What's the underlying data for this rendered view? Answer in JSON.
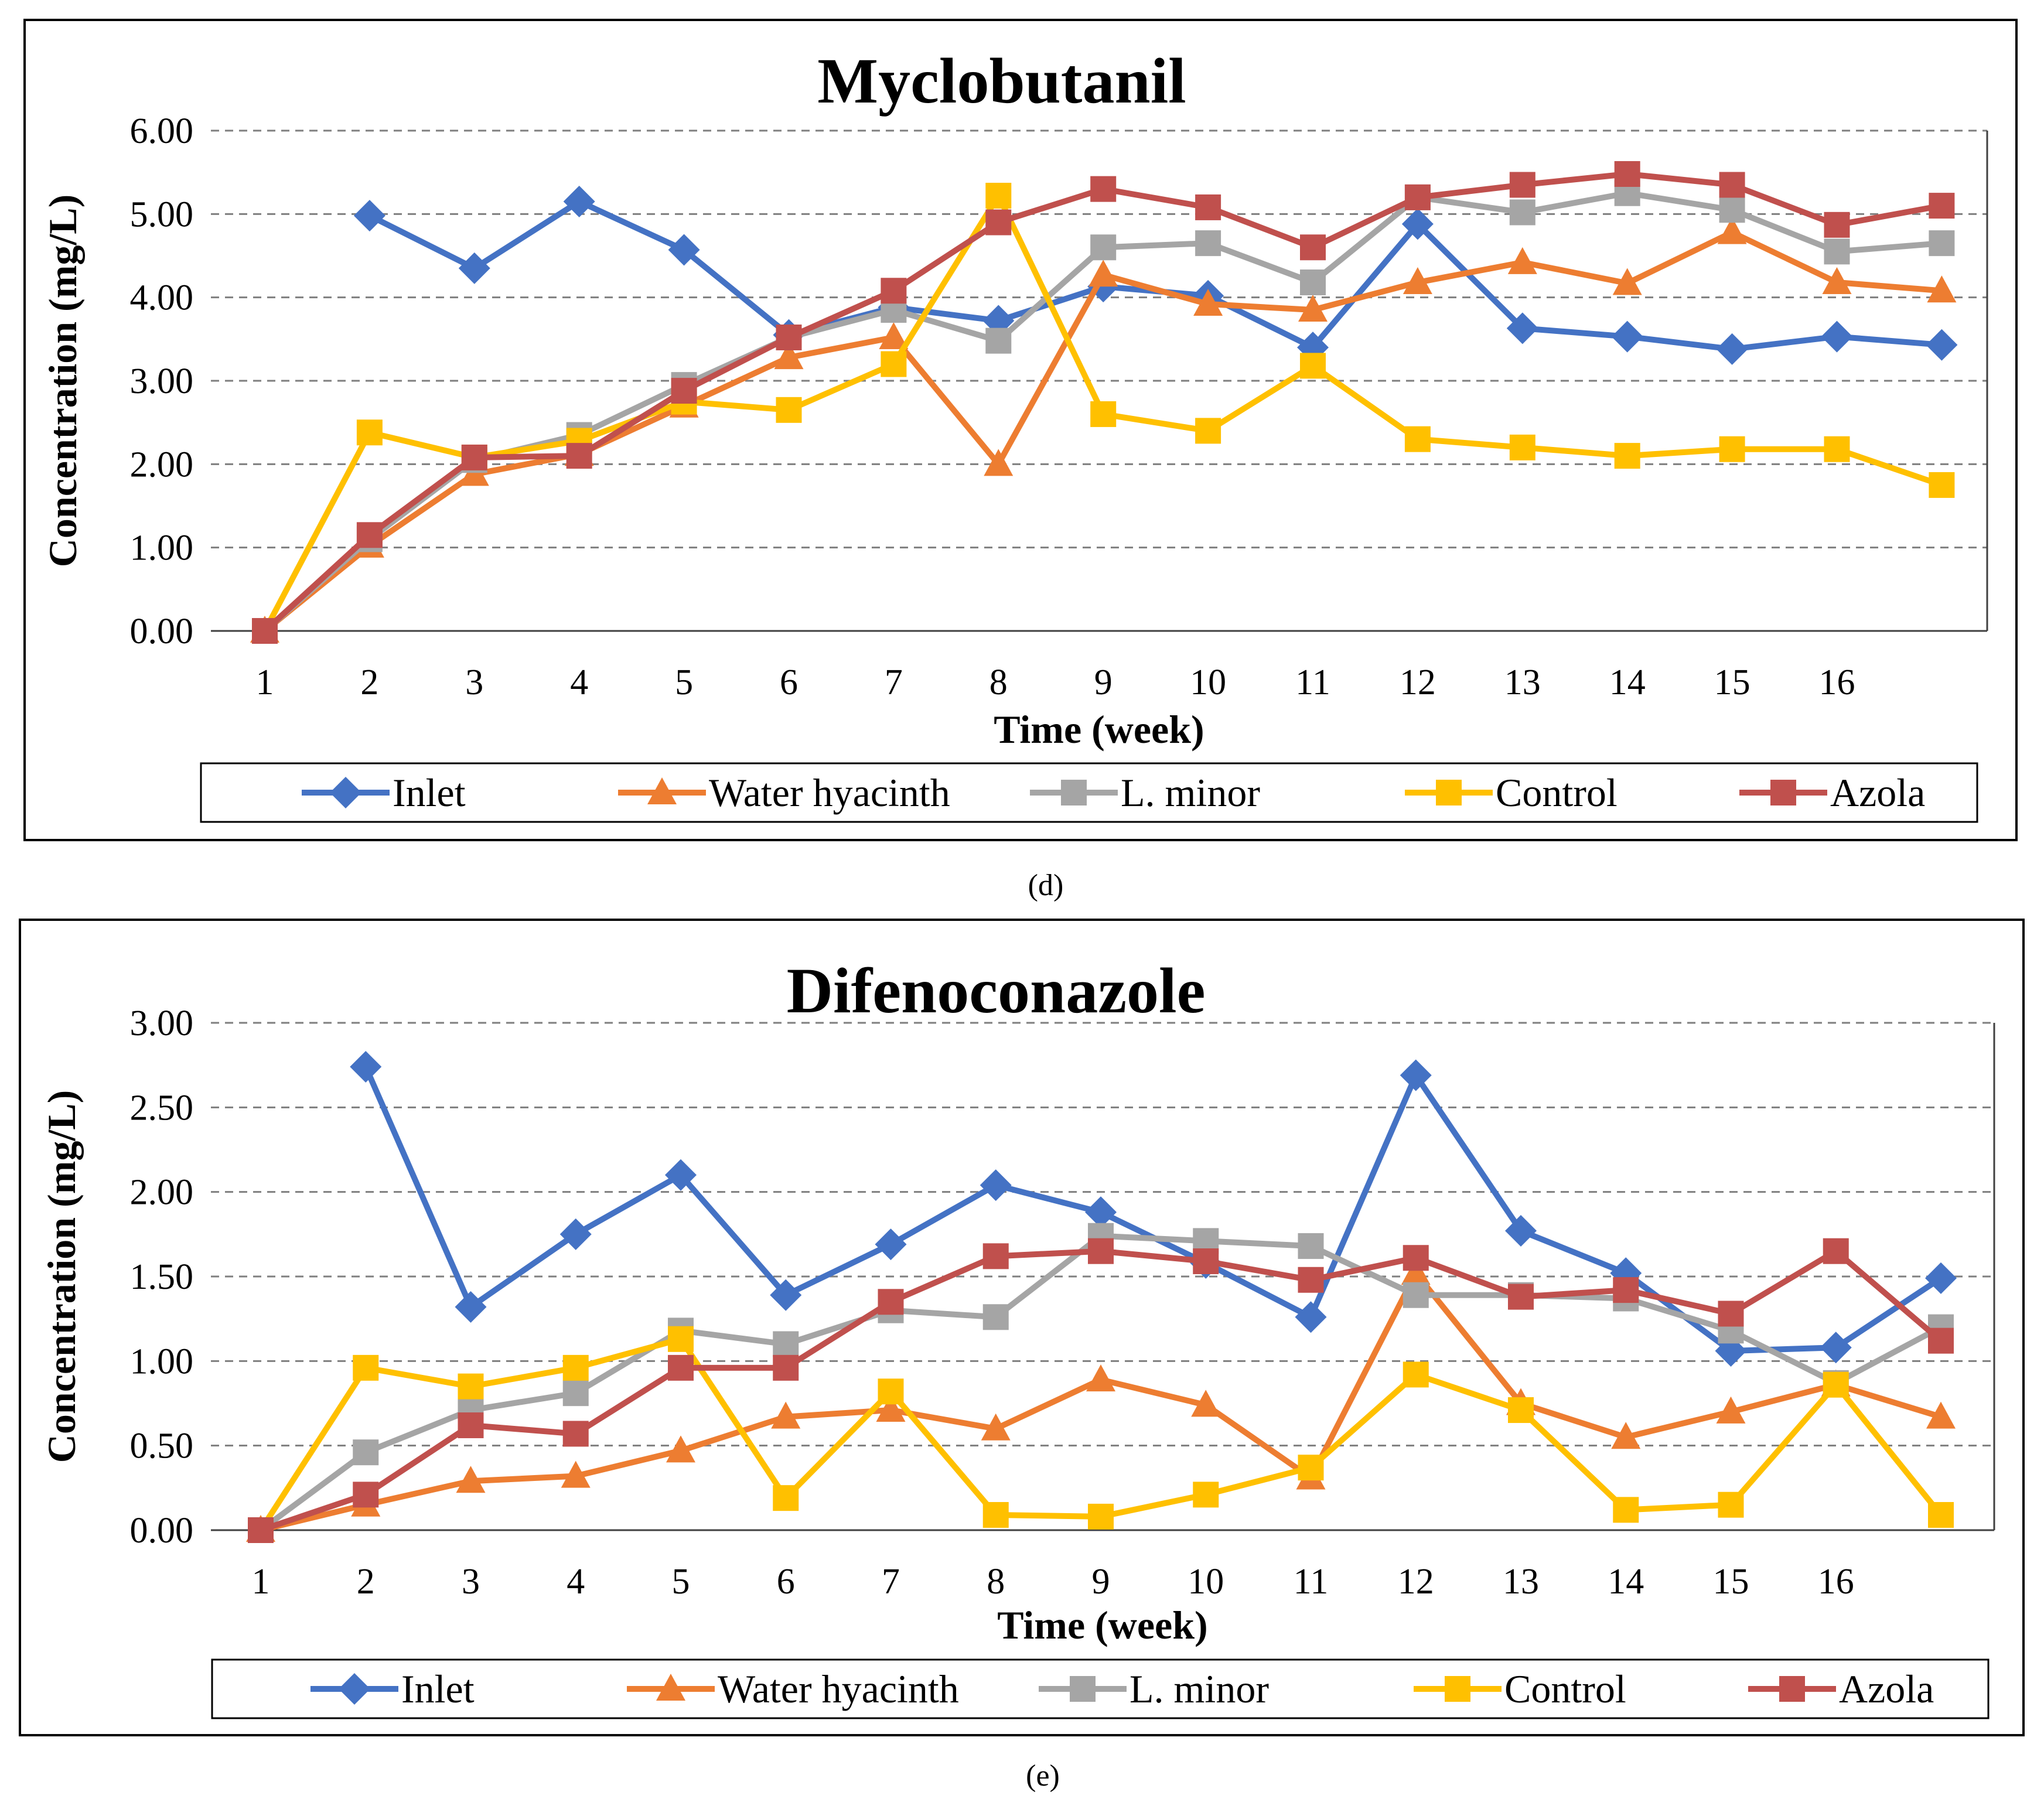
{
  "series_styles": [
    {
      "name": "Inlet",
      "color": "#4472c4",
      "marker": "diamond"
    },
    {
      "name": "Water hyacinth",
      "color": "#ed7d31",
      "marker": "triangle"
    },
    {
      "name": "L. minor",
      "color": "#a5a5a5",
      "marker": "square"
    },
    {
      "name": "Control",
      "color": "#ffc000",
      "marker": "square"
    },
    {
      "name": "Azola",
      "color": "#c0504d",
      "marker": "square"
    }
  ],
  "chart_data": [
    {
      "type": "line",
      "caption": "(d)",
      "title": "Myclobutanil",
      "xlabel": "Time (week)",
      "ylabel": "Concentration (mg/L)",
      "ylim": [
        0,
        6
      ],
      "yticks": [
        "0.00",
        "1.00",
        "2.00",
        "3.00",
        "4.00",
        "5.00",
        "6.00"
      ],
      "x_tick_labels": [
        "1",
        "2",
        "3",
        "4",
        "5",
        "6",
        "7",
        "8",
        "9",
        "10",
        "11",
        "12",
        "13",
        "14",
        "15",
        "16"
      ],
      "legend": [
        "Inlet",
        "Water hyacinth",
        "L. minor",
        "Control",
        "Azola"
      ],
      "legend_position": "bottom",
      "series": [
        {
          "name": "Inlet",
          "values": [
            null,
            4.98,
            4.35,
            5.15,
            4.57,
            3.55,
            3.88,
            3.72,
            4.13,
            4.02,
            3.4,
            4.88,
            3.63,
            3.53,
            3.38,
            3.53,
            3.43
          ]
        },
        {
          "name": "Water hyacinth",
          "values": [
            0.0,
            1.02,
            1.88,
            2.12,
            2.7,
            3.28,
            3.52,
            2.0,
            4.27,
            3.92,
            3.85,
            4.18,
            4.42,
            4.17,
            4.78,
            4.18,
            4.08
          ]
        },
        {
          "name": "L. minor",
          "values": [
            0.0,
            1.1,
            2.05,
            2.35,
            2.95,
            3.52,
            3.85,
            3.48,
            4.6,
            4.65,
            4.18,
            5.2,
            5.02,
            5.25,
            5.05,
            4.55,
            4.65
          ]
        },
        {
          "name": "Control",
          "values": [
            0.0,
            2.38,
            2.08,
            2.28,
            2.75,
            2.65,
            3.2,
            5.22,
            2.6,
            2.4,
            3.18,
            2.3,
            2.2,
            2.1,
            2.18,
            2.18,
            1.75
          ]
        },
        {
          "name": "Azola",
          "values": [
            0.0,
            1.15,
            2.08,
            2.1,
            2.88,
            3.52,
            4.08,
            4.9,
            5.3,
            5.08,
            4.6,
            5.2,
            5.35,
            5.48,
            5.35,
            4.87,
            5.1
          ]
        }
      ]
    },
    {
      "type": "line",
      "caption": "(e)",
      "title": "Difenoconazole",
      "xlabel": "Time (week)",
      "ylabel": "Concentration (mg/L)",
      "ylim": [
        0,
        3
      ],
      "yticks": [
        "0.00",
        "0.50",
        "1.00",
        "1.50",
        "2.00",
        "2.50",
        "3.00"
      ],
      "x_tick_labels": [
        "1",
        "2",
        "3",
        "4",
        "5",
        "6",
        "7",
        "8",
        "9",
        "10",
        "11",
        "12",
        "13",
        "14",
        "15",
        "16"
      ],
      "legend": [
        "Inlet",
        "Water hyacinth",
        "L. minor",
        "Control",
        "Azola"
      ],
      "legend_position": "bottom",
      "series": [
        {
          "name": "Inlet",
          "values": [
            null,
            2.74,
            1.32,
            1.75,
            2.1,
            1.39,
            1.69,
            2.04,
            1.88,
            1.58,
            1.26,
            2.69,
            1.77,
            1.52,
            1.06,
            1.08,
            1.49
          ]
        },
        {
          "name": "Water hyacinth",
          "values": [
            0.0,
            0.15,
            0.29,
            0.32,
            0.47,
            0.67,
            0.71,
            0.6,
            0.89,
            0.74,
            0.31,
            1.52,
            0.75,
            0.55,
            0.7,
            0.86,
            0.67
          ]
        },
        {
          "name": "L. minor",
          "values": [
            0.0,
            0.46,
            0.71,
            0.81,
            1.18,
            1.1,
            1.3,
            1.26,
            1.74,
            1.71,
            1.68,
            1.39,
            1.39,
            1.37,
            1.18,
            0.87,
            1.2
          ]
        },
        {
          "name": "Control",
          "values": [
            0.0,
            0.96,
            0.85,
            0.96,
            1.13,
            0.19,
            0.82,
            0.09,
            0.08,
            0.21,
            0.37,
            0.92,
            0.71,
            0.12,
            0.15,
            0.86,
            0.09
          ]
        },
        {
          "name": "Azola",
          "values": [
            0.0,
            0.21,
            0.62,
            0.57,
            0.96,
            0.96,
            1.35,
            1.62,
            1.65,
            1.59,
            1.48,
            1.61,
            1.38,
            1.42,
            1.28,
            1.65,
            1.12
          ]
        }
      ]
    }
  ]
}
